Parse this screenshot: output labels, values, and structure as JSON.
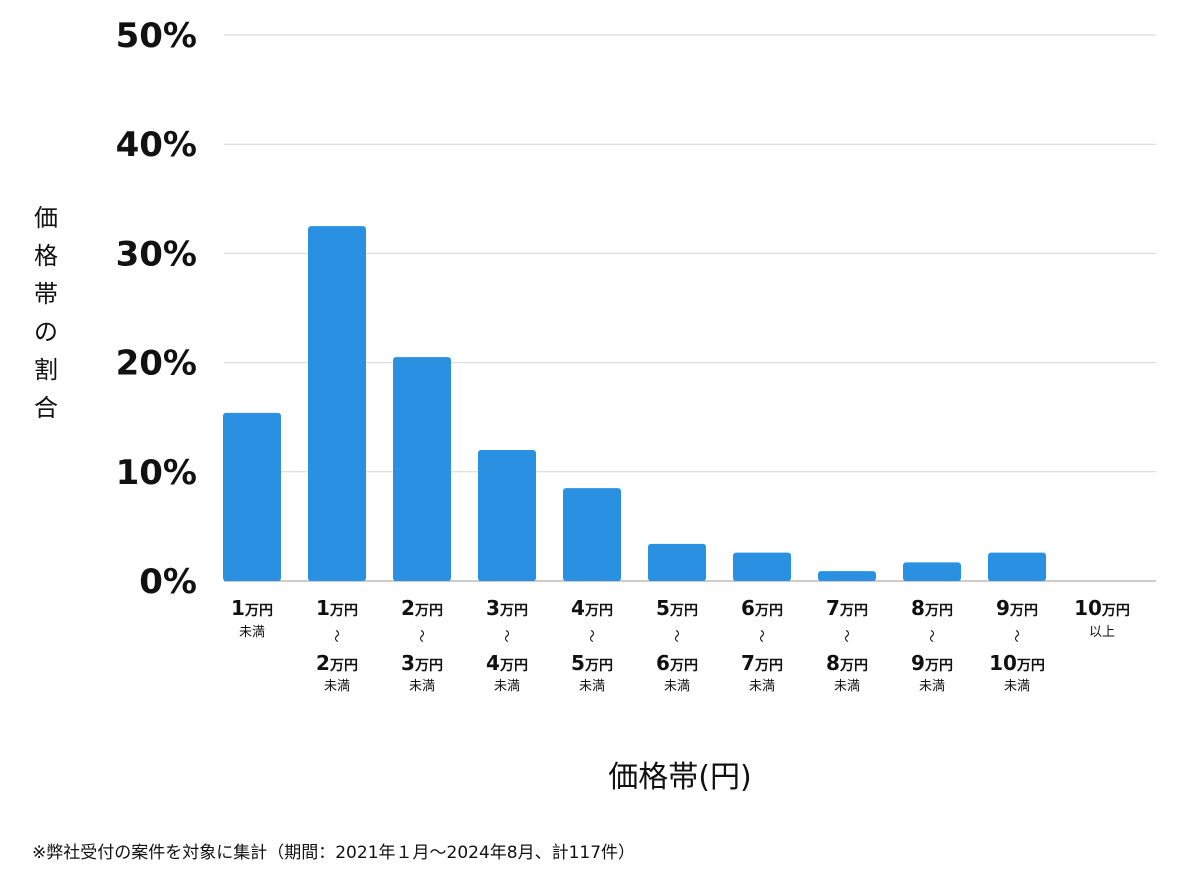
{
  "chart_data": {
    "type": "bar",
    "ylabel": "価格帯の割合",
    "xlabel": "価格帯(円)",
    "ylim": [
      0,
      50
    ],
    "yticks": [
      "0%",
      "10%",
      "20%",
      "30%",
      "40%",
      "50%"
    ],
    "ytick_values": [
      0,
      10,
      20,
      30,
      40,
      50
    ],
    "grid": true,
    "bar_color": "#2a90e2",
    "categories": [
      {
        "a": "1",
        "b": null,
        "suffix": "未満"
      },
      {
        "a": "1",
        "b": "2",
        "suffix": "未満"
      },
      {
        "a": "2",
        "b": "3",
        "suffix": "未満"
      },
      {
        "a": "3",
        "b": "4",
        "suffix": "未満"
      },
      {
        "a": "4",
        "b": "5",
        "suffix": "未満"
      },
      {
        "a": "5",
        "b": "6",
        "suffix": "未満"
      },
      {
        "a": "6",
        "b": "7",
        "suffix": "未満"
      },
      {
        "a": "7",
        "b": "8",
        "suffix": "未満"
      },
      {
        "a": "8",
        "b": "9",
        "suffix": "未満"
      },
      {
        "a": "9",
        "b": "10",
        "suffix": "未満"
      },
      {
        "a": "10",
        "b": null,
        "suffix": "以上"
      }
    ],
    "unit": "万円",
    "range_mark": "〜",
    "values": [
      15.4,
      32.5,
      20.5,
      12.0,
      8.5,
      3.4,
      2.6,
      0.9,
      1.7,
      2.6,
      0
    ]
  },
  "footnote": "※弊社受付の案件を対象に集計（期間：2021年１月〜2024年8月、計117件）"
}
